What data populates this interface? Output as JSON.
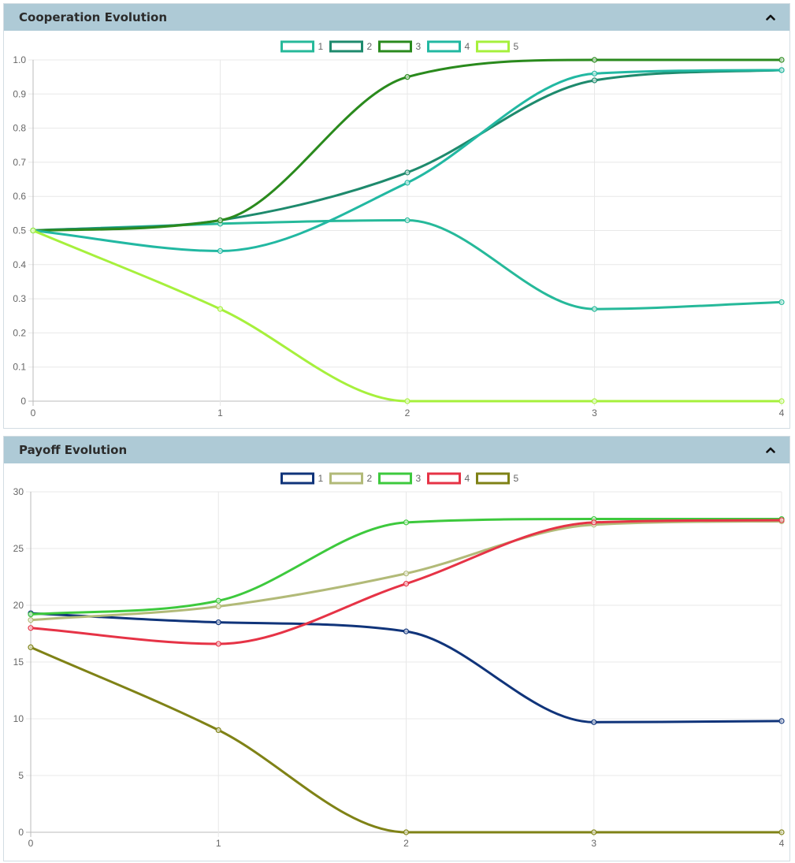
{
  "panels": [
    {
      "title": "Cooperation Evolution",
      "collapse_icon": "chevron-up-icon"
    },
    {
      "title": "Payoff Evolution",
      "collapse_icon": "chevron-up-icon"
    }
  ],
  "chart_data": [
    {
      "type": "line",
      "title": "Cooperation Evolution",
      "x": [
        0,
        1,
        2,
        3,
        4
      ],
      "x_ticks": [
        "0",
        "1",
        "2",
        "3",
        "4"
      ],
      "ylim": [
        0,
        1
      ],
      "y_ticks": [
        "0",
        "0.1",
        "0.2",
        "0.3",
        "0.4",
        "0.5",
        "0.6",
        "0.7",
        "0.8",
        "0.9",
        "1.0"
      ],
      "grid": true,
      "legend_position": "top-center",
      "series": [
        {
          "name": "1",
          "color": "#26b99a",
          "values": [
            0.5,
            0.52,
            0.53,
            0.27,
            0.29
          ]
        },
        {
          "name": "2",
          "color": "#1e8a6d",
          "values": [
            0.5,
            0.53,
            0.67,
            0.94,
            0.97
          ]
        },
        {
          "name": "3",
          "color": "#2a8a1d",
          "values": [
            0.5,
            0.53,
            0.95,
            1.0,
            1.0
          ]
        },
        {
          "name": "4",
          "color": "#22b8a2",
          "values": [
            0.5,
            0.44,
            0.64,
            0.96,
            0.97
          ]
        },
        {
          "name": "5",
          "color": "#a6f03c",
          "values": [
            0.5,
            0.27,
            0.0,
            0.0,
            0.0
          ]
        }
      ]
    },
    {
      "type": "line",
      "title": "Payoff Evolution",
      "x": [
        0,
        1,
        2,
        3,
        4
      ],
      "x_ticks": [
        "0",
        "1",
        "2",
        "3",
        "4"
      ],
      "ylim": [
        0,
        30
      ],
      "y_ticks": [
        "0",
        "5",
        "10",
        "15",
        "20",
        "25",
        "30"
      ],
      "grid": true,
      "legend_position": "top-center",
      "series": [
        {
          "name": "1",
          "color": "#10347a",
          "values": [
            19.3,
            18.5,
            17.7,
            9.7,
            9.8
          ]
        },
        {
          "name": "2",
          "color": "#b2ba78",
          "values": [
            18.7,
            19.9,
            22.8,
            27.1,
            27.4
          ]
        },
        {
          "name": "3",
          "color": "#3dc93d",
          "values": [
            19.2,
            20.4,
            27.3,
            27.6,
            27.6
          ]
        },
        {
          "name": "4",
          "color": "#e63346",
          "values": [
            18.0,
            16.6,
            21.9,
            27.3,
            27.5
          ]
        },
        {
          "name": "5",
          "color": "#7f8216",
          "values": [
            16.3,
            9.0,
            0.0,
            0.0,
            0.0
          ]
        }
      ]
    }
  ]
}
